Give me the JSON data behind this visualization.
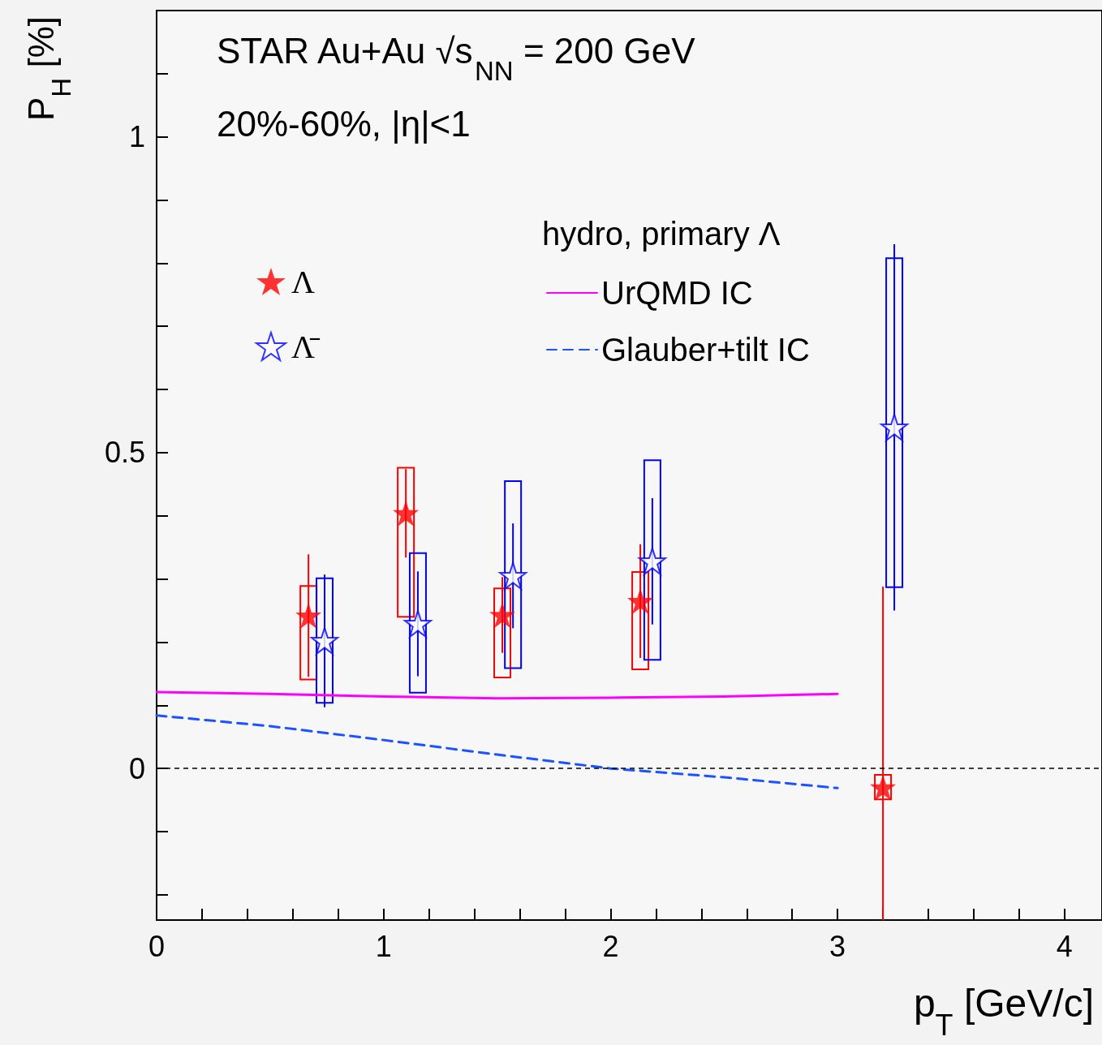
{
  "chart_data": {
    "type": "scatter",
    "annotations": [
      "STAR Au+Au √s$_{NN}$ = 200 GeV",
      "20%-60%, |η|<1"
    ],
    "xlabel": "p$_{T}$ [GeV/c]",
    "ylabel": "P$_{H}$ [%]",
    "legend_title": "hydro, primary Λ",
    "xlim": [
      0,
      4.165
    ],
    "ylim": [
      -0.24,
      1.2
    ],
    "xticks": [
      0,
      {
        "value": 0.2,
        "label": null
      },
      {
        "value": 0.4,
        "label": null
      },
      {
        "value": 0.6,
        "label": null
      },
      {
        "value": 0.8,
        "label": null
      },
      1,
      {
        "value": 1.2,
        "label": null
      },
      {
        "value": 1.4,
        "label": null
      },
      {
        "value": 1.6,
        "label": null
      },
      {
        "value": 1.8,
        "label": null
      },
      2,
      {
        "value": 2.2,
        "label": null
      },
      {
        "value": 2.4,
        "label": null
      },
      {
        "value": 2.6,
        "label": null
      },
      {
        "value": 2.8,
        "label": null
      },
      3,
      {
        "value": 3.2,
        "label": null
      },
      {
        "value": 3.4,
        "label": null
      },
      {
        "value": 3.6,
        "label": null
      },
      {
        "value": 3.8,
        "label": null
      },
      4
    ],
    "yticks": [
      {
        "value": -0.2,
        "label": null
      },
      {
        "value": -0.1,
        "label": null
      },
      0,
      {
        "value": 0.1,
        "label": null
      },
      {
        "value": 0.2,
        "label": null
      },
      {
        "value": 0.3,
        "label": null
      },
      {
        "value": 0.4,
        "label": null
      },
      0.5,
      {
        "value": 0.6,
        "label": null
      },
      {
        "value": 0.7,
        "label": null
      },
      {
        "value": 0.8,
        "label": null
      },
      {
        "value": 0.9,
        "label": null
      },
      1,
      {
        "value": 1.1,
        "label": null
      }
    ],
    "grid": false,
    "legend": "top",
    "ref_lines": [
      {
        "axis": "y",
        "value": 0,
        "color": "#000000",
        "line_style": "dashed"
      }
    ],
    "series": [
      {
        "name": "Λ",
        "color": "#ff0000",
        "marker": "star",
        "x": [
          0.669,
          1.098,
          1.523,
          2.131,
          3.2
        ],
        "values": [
          0.242,
          0.404,
          0.243,
          0.265,
          -0.03
        ],
        "errors": [
          0.097,
          0.07,
          0.06,
          0.09,
          [
            -0.24,
            0.288
          ]
        ]
      },
      {
        "name": "Λ̄",
        "color": "#0000ff",
        "marker": "star",
        "x": [
          0.74,
          1.151,
          1.57,
          2.184,
          3.25
        ],
        "values": [
          0.202,
          0.229,
          0.305,
          0.328,
          0.54
        ],
        "errors": [
          0.105,
          0.083,
          0.083,
          0.1,
          0.29
        ]
      },
      {
        "type": "bar",
        "color": "#ff0000",
        "x": [
          0.669,
          1.098,
          1.523,
          2.131,
          3.2
        ],
        "base": [
          0.141,
          0.24,
          0.144,
          0.157,
          -0.049
        ],
        "values": [
          0.148,
          0.236,
          0.141,
          0.154,
          0.039
        ]
      },
      {
        "type": "bar",
        "color": "#0000ff",
        "x": [
          0.74,
          1.151,
          1.57,
          2.184,
          3.25
        ],
        "base": [
          0.104,
          0.12,
          0.159,
          0.172,
          0.287
        ],
        "values": [
          0.197,
          0.221,
          0.296,
          0.316,
          0.521
        ]
      },
      {
        "type": "line",
        "name": "UrQMD IC",
        "color": "#ff00ff",
        "marker": "none",
        "line_style": "solid",
        "x": [
          0,
          0.5,
          1,
          1.5,
          2,
          2.5,
          3
        ],
        "values": [
          0.121,
          0.118,
          0.114,
          0.111,
          0.112,
          0.114,
          0.118
        ]
      },
      {
        "type": "line",
        "name": "Glauber+tilt IC",
        "color": "#1a53ff",
        "marker": "none",
        "line_style": "dashed",
        "x": [
          0,
          0.5,
          1,
          1.5,
          2,
          2.5,
          3
        ],
        "values": [
          0.084,
          0.067,
          0.045,
          0.022,
          0,
          -0.014,
          -0.031
        ]
      }
    ]
  }
}
